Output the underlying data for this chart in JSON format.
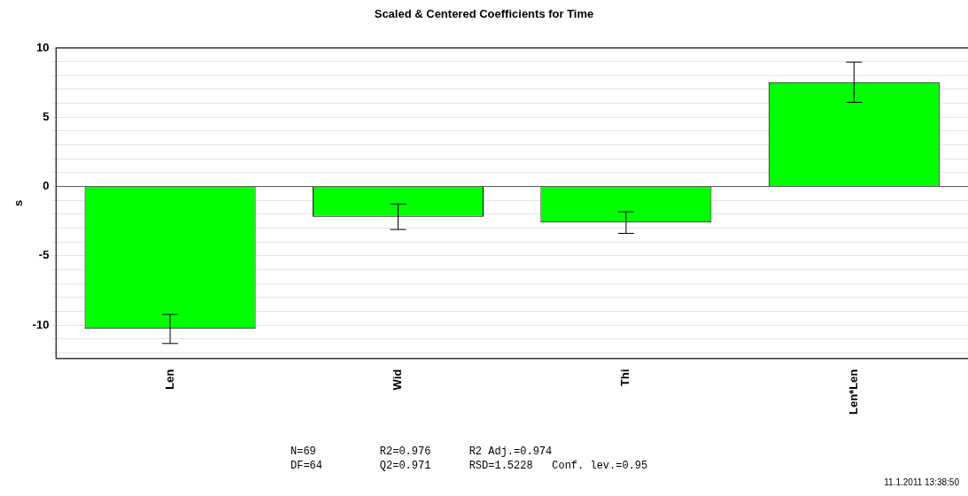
{
  "chart_data": {
    "type": "bar",
    "title": "Scaled & Centered Coefficients for Time",
    "ylabel": "s",
    "categories": [
      "Len",
      "Wid",
      "Thi",
      "Len*Len"
    ],
    "values": [
      -10.27,
      -2.18,
      -2.6,
      7.52
    ],
    "errors": [
      1.05,
      0.92,
      0.78,
      1.45
    ],
    "color": "#00ff00",
    "ylim": [
      -12.4,
      10
    ],
    "yticks": [
      {
        "value": -12,
        "label": null
      },
      {
        "value": -11,
        "label": null
      },
      -10,
      {
        "value": -9,
        "label": null
      },
      {
        "value": -8,
        "label": null
      },
      {
        "value": -7,
        "label": null
      },
      {
        "value": -6,
        "label": null
      },
      -5,
      {
        "value": -4,
        "label": null
      },
      {
        "value": -3,
        "label": null
      },
      {
        "value": -2,
        "label": null
      },
      {
        "value": -1,
        "label": null
      },
      0,
      {
        "value": 1,
        "label": null
      },
      {
        "value": 2,
        "label": null
      },
      {
        "value": 3,
        "label": null
      },
      {
        "value": 4,
        "label": null
      },
      5,
      {
        "value": 6,
        "label": null
      },
      {
        "value": 7,
        "label": null
      },
      {
        "value": 8,
        "label": null
      },
      {
        "value": 9,
        "label": null
      },
      10
    ],
    "grid": "y",
    "annotations": [
      "N=69          R2=0.976      R2 Adj.=0.974",
      "DF=64         Q2=0.971      RSD=1.5228   Conf. lev.=0.95",
      "11.1.2011 13:38:50"
    ]
  }
}
